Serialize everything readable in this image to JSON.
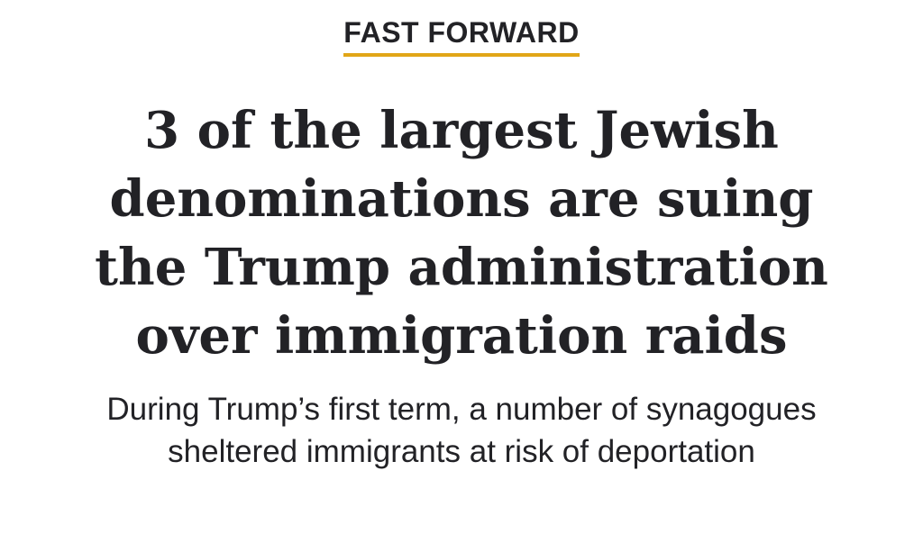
{
  "header": {
    "kicker": "FAST FORWARD"
  },
  "article": {
    "headline": "3 of the largest Jewish denominations are suing the Trump administration over immigration raids",
    "subheadline": "During Trump’s first term, a number of synagogues sheltered immigrants at risk of deportation"
  }
}
